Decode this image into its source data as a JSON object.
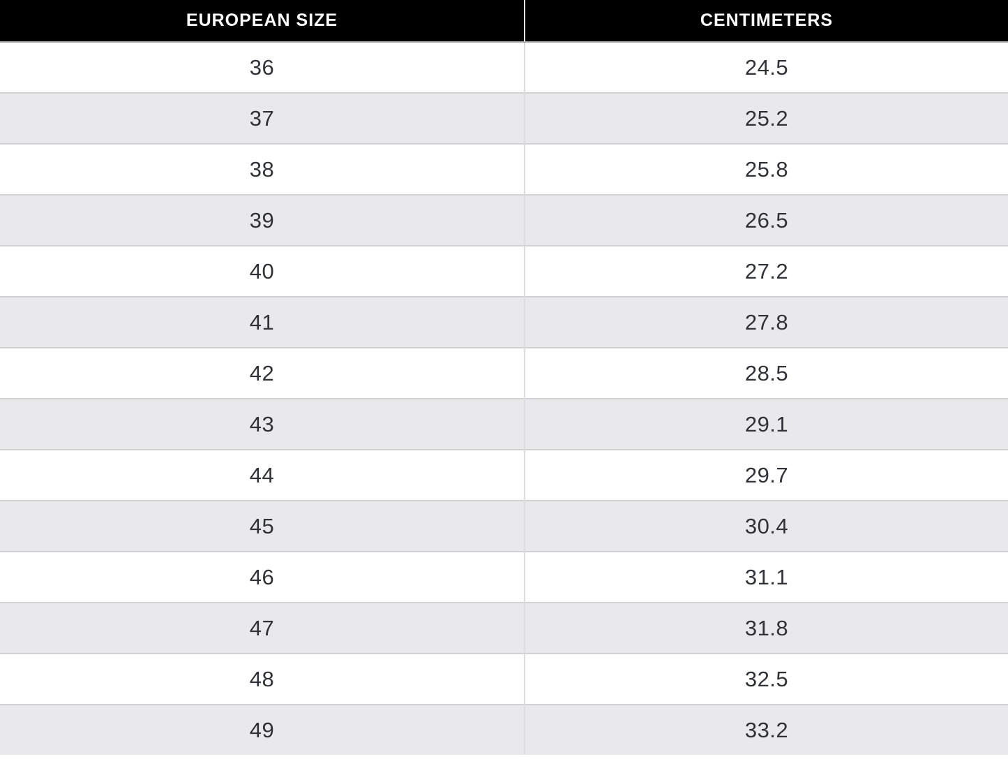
{
  "chart_data": {
    "type": "table",
    "columns": [
      "EUROPEAN SIZE",
      "CENTIMETERS"
    ],
    "rows": [
      [
        "36",
        "24.5"
      ],
      [
        "37",
        "25.2"
      ],
      [
        "38",
        "25.8"
      ],
      [
        "39",
        "26.5"
      ],
      [
        "40",
        "27.2"
      ],
      [
        "41",
        "27.8"
      ],
      [
        "42",
        "28.5"
      ],
      [
        "43",
        "29.1"
      ],
      [
        "44",
        "29.7"
      ],
      [
        "45",
        "30.4"
      ],
      [
        "46",
        "31.1"
      ],
      [
        "47",
        "31.8"
      ],
      [
        "48",
        "32.5"
      ],
      [
        "49",
        "33.2"
      ]
    ],
    "layout_hints": {
      "header_style": "black-background-white-text",
      "row_striping": "white-and-light-gray",
      "text_alignment": "center"
    }
  },
  "colors": {
    "header_bg": "#000000",
    "header_text": "#ffffff",
    "header_divider": "#ffffff",
    "row_bg": "#ffffff",
    "row_alt_bg": "#e9e8ea",
    "body_text": "#313238",
    "row_divider": "#d2d1d4",
    "column_divider": "#dcdbde"
  }
}
